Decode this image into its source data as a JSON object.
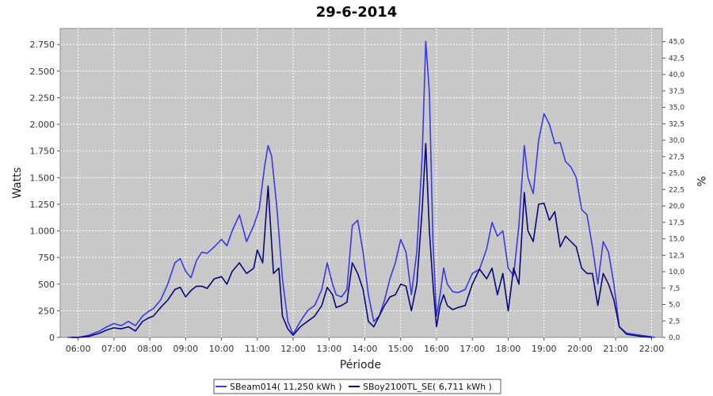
{
  "chart_data": {
    "type": "line",
    "title": "29-6-2014",
    "xlabel": "Période",
    "ylabel": "Watts",
    "y2label": "%",
    "xlim": [
      5.5,
      22.3
    ],
    "ylim": [
      0,
      2900
    ],
    "y2lim": [
      0,
      47.0
    ],
    "grid": true,
    "legend_position": "bottom",
    "x_ticks": [
      {
        "value": 6,
        "label": "06:00"
      },
      {
        "value": 7,
        "label": "07:00"
      },
      {
        "value": 8,
        "label": "08:00"
      },
      {
        "value": 9,
        "label": "09:00"
      },
      {
        "value": 10,
        "label": "10:00"
      },
      {
        "value": 11,
        "label": "11:00"
      },
      {
        "value": 12,
        "label": "12:00"
      },
      {
        "value": 13,
        "label": "13:00"
      },
      {
        "value": 14,
        "label": "14:00"
      },
      {
        "value": 15,
        "label": "15:00"
      },
      {
        "value": 16,
        "label": "16:00"
      },
      {
        "value": 17,
        "label": "17:00"
      },
      {
        "value": 18,
        "label": "18:00"
      },
      {
        "value": 19,
        "label": "19:00"
      },
      {
        "value": 20,
        "label": "20:00"
      },
      {
        "value": 21,
        "label": "21:00"
      },
      {
        "value": 22,
        "label": "22:00"
      }
    ],
    "y_ticks": [
      {
        "value": 0,
        "label": "0"
      },
      {
        "value": 250,
        "label": "250"
      },
      {
        "value": 500,
        "label": "500"
      },
      {
        "value": 750,
        "label": "750"
      },
      {
        "value": 1000,
        "label": "1.000"
      },
      {
        "value": 1250,
        "label": "1.250"
      },
      {
        "value": 1500,
        "label": "1.500"
      },
      {
        "value": 1750,
        "label": "1.750"
      },
      {
        "value": 2000,
        "label": "2.000"
      },
      {
        "value": 2250,
        "label": "2.250"
      },
      {
        "value": 2500,
        "label": "2.500"
      },
      {
        "value": 2750,
        "label": "2.750"
      }
    ],
    "y2_ticks": [
      {
        "value": 0,
        "label": "0,0"
      },
      {
        "value": 2.5,
        "label": "2,5"
      },
      {
        "value": 5,
        "label": "5,0"
      },
      {
        "value": 7.5,
        "label": "7,5"
      },
      {
        "value": 10,
        "label": "10,0"
      },
      {
        "value": 12.5,
        "label": "12,5"
      },
      {
        "value": 15,
        "label": "15,0"
      },
      {
        "value": 17.5,
        "label": "17,5"
      },
      {
        "value": 20,
        "label": "20,0"
      },
      {
        "value": 22.5,
        "label": "22,5"
      },
      {
        "value": 25,
        "label": "25,0"
      },
      {
        "value": 27.5,
        "label": "27,5"
      },
      {
        "value": 30,
        "label": "30,0"
      },
      {
        "value": 32.5,
        "label": "32,5"
      },
      {
        "value": 35,
        "label": "35,0"
      },
      {
        "value": 37.5,
        "label": "37,5"
      },
      {
        "value": 40,
        "label": "40,0"
      },
      {
        "value": 42.5,
        "label": "42,5"
      },
      {
        "value": 45,
        "label": "45,0"
      }
    ],
    "series": [
      {
        "name": "SBeam014( 11,250 kWh )",
        "color": "#3a3ae6",
        "x": [
          5.7,
          6.0,
          6.3,
          6.6,
          6.8,
          7.0,
          7.2,
          7.4,
          7.6,
          7.8,
          7.95,
          8.1,
          8.3,
          8.5,
          8.7,
          8.85,
          9.0,
          9.15,
          9.3,
          9.45,
          9.6,
          9.8,
          10.0,
          10.15,
          10.3,
          10.5,
          10.7,
          10.9,
          11.05,
          11.2,
          11.3,
          11.4,
          11.55,
          11.7,
          11.85,
          12.0,
          12.2,
          12.4,
          12.6,
          12.8,
          12.95,
          13.1,
          13.2,
          13.35,
          13.5,
          13.65,
          13.8,
          13.95,
          14.1,
          14.25,
          14.4,
          14.55,
          14.7,
          14.85,
          15.0,
          15.15,
          15.3,
          15.45,
          15.6,
          15.7,
          15.8,
          15.9,
          16.0,
          16.1,
          16.2,
          16.3,
          16.45,
          16.6,
          16.8,
          17.0,
          17.2,
          17.4,
          17.55,
          17.7,
          17.85,
          18.0,
          18.15,
          18.3,
          18.45,
          18.55,
          18.7,
          18.85,
          19.0,
          19.15,
          19.3,
          19.45,
          19.6,
          19.75,
          19.9,
          20.05,
          20.2,
          20.35,
          20.5,
          20.65,
          20.8,
          20.95,
          21.1,
          21.3,
          21.5,
          21.7,
          21.9,
          22.1
        ],
        "y": [
          0,
          0,
          20,
          60,
          100,
          130,
          110,
          150,
          110,
          200,
          240,
          270,
          350,
          500,
          700,
          740,
          620,
          560,
          720,
          800,
          790,
          850,
          920,
          860,
          1000,
          1150,
          900,
          1050,
          1200,
          1600,
          1800,
          1700,
          1200,
          550,
          150,
          30,
          150,
          250,
          300,
          450,
          700,
          500,
          400,
          380,
          450,
          1050,
          1100,
          800,
          400,
          150,
          200,
          350,
          550,
          700,
          920,
          800,
          400,
          800,
          1700,
          2780,
          2300,
          900,
          200,
          400,
          650,
          500,
          430,
          420,
          450,
          600,
          640,
          830,
          1080,
          950,
          1000,
          650,
          580,
          1050,
          1800,
          1500,
          1350,
          1850,
          2100,
          2000,
          1820,
          1830,
          1650,
          1600,
          1500,
          1200,
          1150,
          850,
          500,
          900,
          800,
          500,
          100,
          40,
          30,
          20,
          10,
          0
        ]
      },
      {
        "name": "SBoy2100TL_SE( 6,711 kWh )",
        "color": "#08087a",
        "x": [
          5.8,
          6.0,
          6.3,
          6.6,
          6.8,
          7.0,
          7.2,
          7.4,
          7.6,
          7.8,
          7.95,
          8.1,
          8.3,
          8.5,
          8.7,
          8.85,
          9.0,
          9.15,
          9.3,
          9.45,
          9.6,
          9.8,
          10.0,
          10.15,
          10.3,
          10.5,
          10.7,
          10.9,
          11.0,
          11.15,
          11.3,
          11.45,
          11.6,
          11.7,
          11.85,
          12.0,
          12.2,
          12.4,
          12.6,
          12.8,
          12.95,
          13.1,
          13.2,
          13.35,
          13.5,
          13.65,
          13.8,
          13.95,
          14.1,
          14.25,
          14.4,
          14.55,
          14.7,
          14.85,
          15.0,
          15.15,
          15.3,
          15.45,
          15.6,
          15.7,
          15.8,
          15.9,
          16.0,
          16.1,
          16.2,
          16.3,
          16.45,
          16.6,
          16.8,
          17.0,
          17.2,
          17.4,
          17.55,
          17.7,
          17.85,
          18.0,
          18.15,
          18.3,
          18.45,
          18.55,
          18.7,
          18.85,
          19.0,
          19.15,
          19.3,
          19.45,
          19.6,
          19.75,
          19.9,
          20.05,
          20.2,
          20.35,
          20.5,
          20.65,
          20.8,
          20.95,
          21.1,
          21.3,
          21.5,
          21.7,
          21.9,
          22.0
        ],
        "y": [
          0,
          0,
          10,
          40,
          70,
          90,
          80,
          100,
          60,
          150,
          180,
          200,
          280,
          350,
          450,
          470,
          380,
          440,
          480,
          480,
          460,
          550,
          570,
          500,
          620,
          700,
          600,
          650,
          820,
          700,
          1420,
          600,
          650,
          200,
          80,
          20,
          100,
          150,
          200,
          300,
          470,
          400,
          280,
          300,
          330,
          700,
          600,
          450,
          150,
          100,
          200,
          300,
          380,
          400,
          500,
          480,
          250,
          500,
          1200,
          1820,
          1000,
          500,
          100,
          300,
          400,
          300,
          260,
          280,
          300,
          500,
          640,
          550,
          650,
          400,
          600,
          250,
          650,
          500,
          1360,
          1000,
          900,
          1250,
          1260,
          1100,
          1180,
          850,
          950,
          900,
          850,
          650,
          600,
          600,
          300,
          600,
          500,
          350,
          100,
          30,
          20,
          10,
          5,
          0
        ]
      }
    ]
  }
}
